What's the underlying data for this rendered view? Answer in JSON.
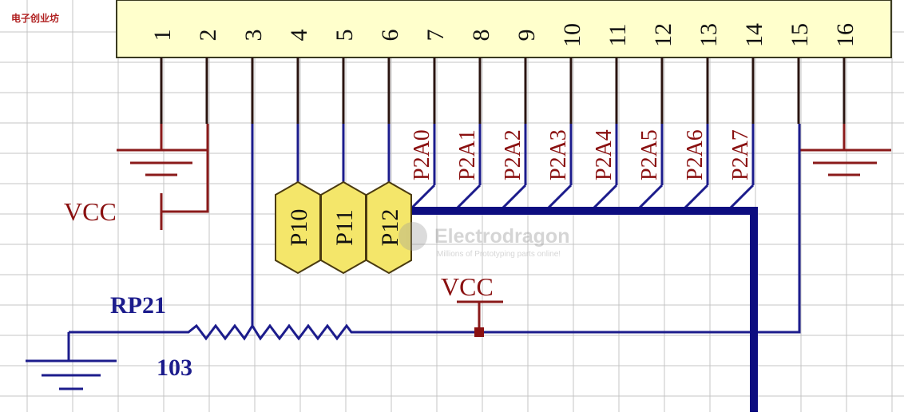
{
  "corner_label": "电子创业坊",
  "connector": {
    "pins": [
      "1",
      "2",
      "3",
      "4",
      "5",
      "6",
      "7",
      "8",
      "9",
      "10",
      "11",
      "12",
      "13",
      "14",
      "15",
      "16"
    ]
  },
  "bus_labels": [
    "P2A0",
    "P2A1",
    "P2A2",
    "P2A3",
    "P2A4",
    "P2A5",
    "P2A6",
    "P2A7"
  ],
  "jumpers": [
    "P10",
    "P11",
    "P12"
  ],
  "vcc_left": "VCC",
  "vcc_mid": "VCC",
  "resistor": {
    "ref": "RP21",
    "value": "103"
  },
  "watermark": {
    "brand": "Electrodragon",
    "tagline": "Millions of Prototyping parts online!"
  },
  "colors": {
    "grid": "#c4c4c4",
    "connector_fill": "#ffffcc",
    "wire_dark": "#2a1410",
    "wire_red": "#8a1a1a",
    "wire_blue": "#1c1c8c",
    "bus_blue": "#0d0d80",
    "label_red": "#8a1010",
    "label_blue": "#1c1c8c",
    "jumper_fill": "#f4e66a",
    "jumper_stroke": "#4a3a10"
  }
}
